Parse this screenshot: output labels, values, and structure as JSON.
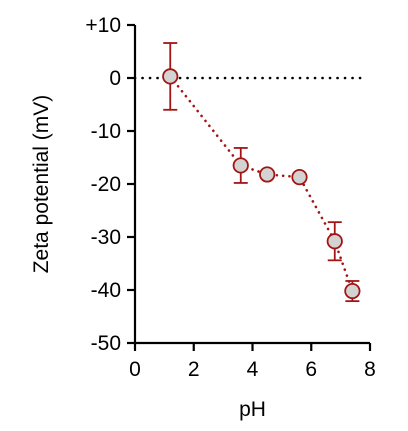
{
  "chart_data": {
    "type": "scatter",
    "title": "",
    "xlabel": "pH",
    "ylabel": "Zeta potential (mV)",
    "xlim": [
      0,
      8
    ],
    "ylim": [
      -50,
      10
    ],
    "xticks": [
      "0",
      "2",
      "4",
      "6",
      "8"
    ],
    "yticks": [
      "+10",
      "0",
      "-10",
      "-20",
      "-30",
      "-40",
      "-50"
    ],
    "reference_line": {
      "y": 0,
      "style": "dotted"
    },
    "grid": false,
    "legend": "none",
    "series": [
      {
        "x": [
          1.2,
          3.6,
          4.5,
          5.6,
          6.8,
          7.4
        ],
        "y": [
          0.3,
          -16.5,
          -18.2,
          -18.7,
          -30.8,
          -40.2
        ],
        "error": [
          6.3,
          3.3,
          0.0,
          0.0,
          3.6,
          1.9
        ],
        "marker_fill": "#d3d3d3",
        "color": "#a31515",
        "connector_style": "dotted"
      }
    ]
  }
}
